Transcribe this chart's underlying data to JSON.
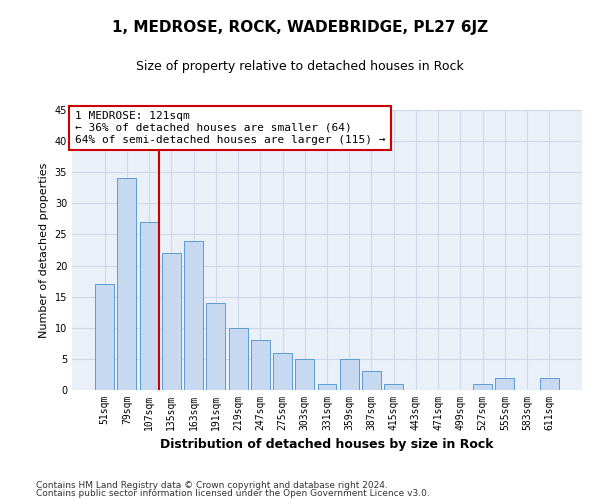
{
  "title": "1, MEDROSE, ROCK, WADEBRIDGE, PL27 6JZ",
  "subtitle": "Size of property relative to detached houses in Rock",
  "xlabel": "Distribution of detached houses by size in Rock",
  "ylabel": "Number of detached properties",
  "bar_labels": [
    "51sqm",
    "79sqm",
    "107sqm",
    "135sqm",
    "163sqm",
    "191sqm",
    "219sqm",
    "247sqm",
    "275sqm",
    "303sqm",
    "331sqm",
    "359sqm",
    "387sqm",
    "415sqm",
    "443sqm",
    "471sqm",
    "499sqm",
    "527sqm",
    "555sqm",
    "583sqm",
    "611sqm"
  ],
  "bar_values": [
    17,
    34,
    27,
    22,
    24,
    14,
    10,
    8,
    6,
    5,
    1,
    5,
    3,
    1,
    0,
    0,
    0,
    1,
    2,
    0,
    2
  ],
  "bar_color": "#c6d9f0",
  "bar_edge_color": "#5b9bd5",
  "ylim": [
    0,
    45
  ],
  "yticks": [
    0,
    5,
    10,
    15,
    20,
    25,
    30,
    35,
    40,
    45
  ],
  "vline_color": "#cc0000",
  "annotation_text": "1 MEDROSE: 121sqm\n← 36% of detached houses are smaller (64)\n64% of semi-detached houses are larger (115) →",
  "annotation_box_color": "#ffffff",
  "annotation_box_edge_color": "#cc0000",
  "footnote_line1": "Contains HM Land Registry data © Crown copyright and database right 2024.",
  "footnote_line2": "Contains public sector information licensed under the Open Government Licence v3.0.",
  "grid_color": "#d0d8e8",
  "bg_color": "#eaf0f8",
  "title_fontsize": 11,
  "subtitle_fontsize": 9,
  "xlabel_fontsize": 9,
  "ylabel_fontsize": 8,
  "tick_fontsize": 7,
  "annotation_fontsize": 8,
  "footnote_fontsize": 6.5
}
